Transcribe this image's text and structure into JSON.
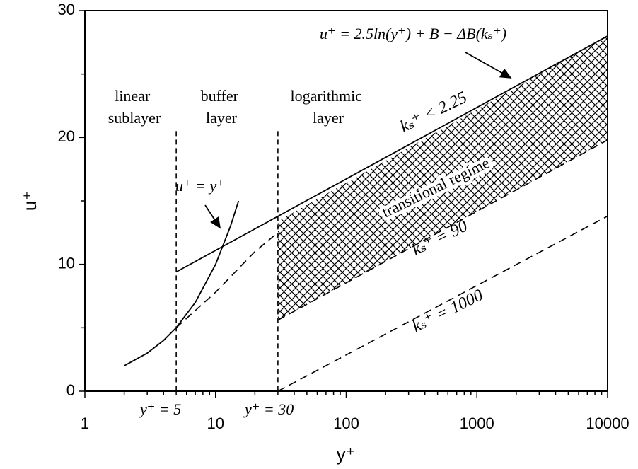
{
  "chart_data": {
    "type": "line",
    "xscale": "log",
    "xlim": [
      1,
      10000
    ],
    "ylim": [
      0,
      30
    ],
    "xticks": [
      1,
      10,
      100,
      1000,
      10000
    ],
    "xtick_labels": [
      "1",
      "10",
      "100",
      "1000",
      "10000"
    ],
    "yticks": [
      0,
      10,
      20,
      30
    ],
    "ytick_labels": [
      "0",
      "10",
      "20",
      "30"
    ],
    "xlabel": "y⁺",
    "ylabel": "u⁺",
    "grid": false,
    "series": [
      {
        "x": [
          2,
          3,
          4,
          5,
          7,
          10,
          13,
          15
        ],
        "y": [
          2,
          3,
          4,
          5,
          7,
          10,
          13,
          15
        ],
        "style": "solid"
      },
      {
        "x": [
          5,
          10000
        ],
        "y": [
          9.4,
          28
        ],
        "style": "solid"
      },
      {
        "x": [
          5,
          10,
          20,
          30
        ],
        "y": [
          5,
          7.8,
          11,
          12.5
        ],
        "style": "dashed"
      },
      {
        "x": [
          30,
          10000
        ],
        "y": [
          5.6,
          19.8
        ],
        "style": "dashed"
      },
      {
        "x": [
          30,
          10000
        ],
        "y": [
          0,
          13.8
        ],
        "style": "dashed"
      }
    ],
    "vlines": [
      {
        "x": 5,
        "label": "y⁺ = 5"
      },
      {
        "x": 30,
        "label": "y⁺ = 30"
      }
    ],
    "hatched_region": {
      "label": "transitional regime",
      "upper": {
        "x": [
          30,
          10000
        ],
        "y": [
          13.4,
          28
        ]
      },
      "lower": {
        "x": [
          30,
          10000
        ],
        "y": [
          5.6,
          19.8
        ]
      }
    },
    "annotations": {
      "regions": [
        {
          "lines": [
            "linear",
            "sublayer"
          ]
        },
        {
          "lines": [
            "buffer",
            "layer"
          ]
        },
        {
          "lines": [
            "logarithmic",
            "layer"
          ]
        }
      ],
      "law_of_wall": "u⁺ = y⁺",
      "log_law": "u⁺ = 2.5ln(y⁺) + B − ΔB(kₛ⁺)",
      "ks_labels": [
        "kₛ⁺ < 2.25",
        "kₛ⁺ = 90",
        "kₛ⁺ = 1000"
      ]
    }
  }
}
